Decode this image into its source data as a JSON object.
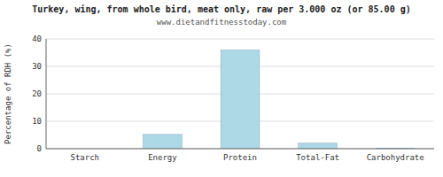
{
  "chart_data": {
    "type": "bar",
    "title": "Turkey, wing, from whole bird, meat only, raw per 3.000 oz (or 85.00 g)",
    "subtitle": "www.dietandfitnesstoday.com",
    "categories": [
      "Starch",
      "Energy",
      "Protein",
      "Total-Fat",
      "Carbohydrate"
    ],
    "values": [
      0,
      5.2,
      36.0,
      2.0,
      0.1
    ],
    "color": "#add8e6",
    "ylabel": "Percentage of RDH (%)",
    "ylim": [
      0,
      40
    ],
    "yticks": [
      0,
      10,
      20,
      30,
      40
    ],
    "grid": true
  }
}
